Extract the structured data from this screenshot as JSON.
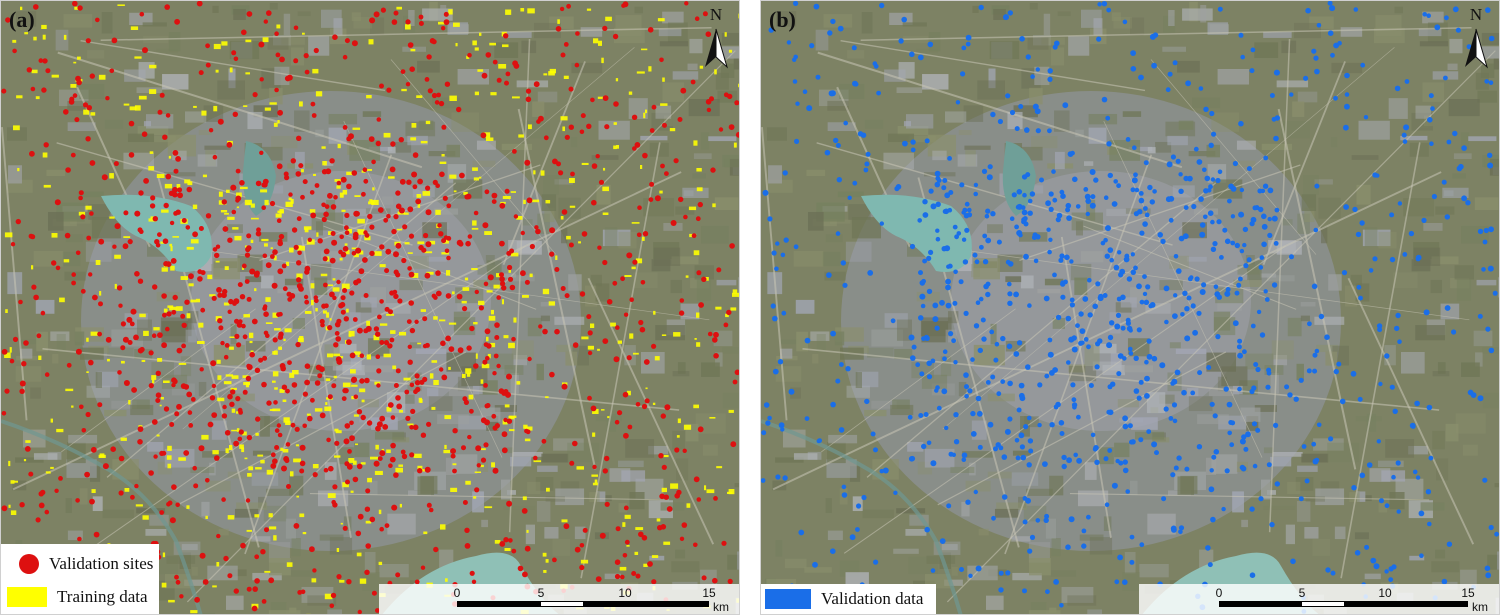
{
  "panels": [
    {
      "label": "(a)",
      "north": "N",
      "legend": [
        {
          "symbol": "red-dot",
          "text": "Validation sites"
        },
        {
          "symbol": "yellow-rect",
          "text": "Training data"
        }
      ],
      "scale": {
        "ticks": [
          "0",
          "5",
          "10",
          "15"
        ],
        "unit": "km"
      }
    },
    {
      "label": "(b)",
      "north": "N",
      "legend": [
        {
          "symbol": "blue-rect",
          "text": "Validation  data"
        }
      ],
      "scale": {
        "ticks": [
          "0",
          "5",
          "10",
          "15"
        ],
        "unit": "km"
      }
    }
  ],
  "colors": {
    "validation_sites": "#dd1010",
    "training_data": "#ffff00",
    "validation_data": "#1a6ee8",
    "water": "#7fb8b0"
  }
}
